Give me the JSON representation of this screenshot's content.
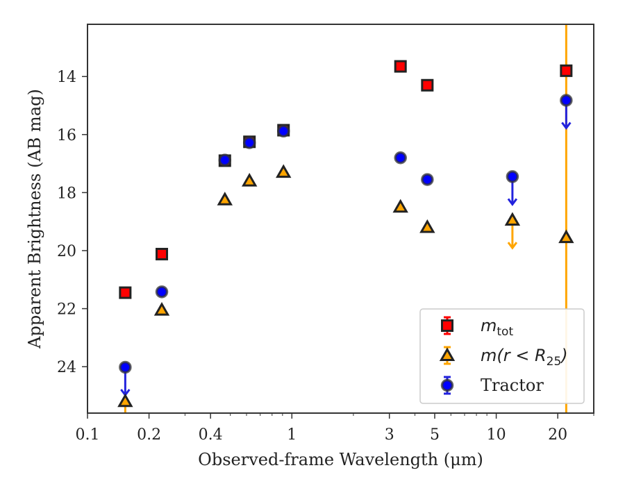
{
  "chart_data": {
    "type": "scatter",
    "xlabel": "Observed-frame Wavelength (μm)",
    "ylabel": "Apparent Brightness (AB mag)",
    "x_scale": "log",
    "xlim": [
      0.1,
      30
    ],
    "ylim": [
      25.6,
      12.2
    ],
    "y_inverted": true,
    "grid": false,
    "legend_position": "bottom-right",
    "x_ticks": [
      0.1,
      0.2,
      0.4,
      1,
      3,
      5,
      10,
      20
    ],
    "x_tick_labels": [
      "0.1",
      "0.2",
      "0.4",
      "1",
      "3",
      "5",
      "10",
      "20"
    ],
    "y_ticks": [
      14,
      16,
      18,
      20,
      22,
      24
    ],
    "y_tick_labels": [
      "14",
      "16",
      "18",
      "20",
      "22",
      "24"
    ],
    "series": [
      {
        "name": "m_tot",
        "marker": "square",
        "fill": "#ff0000",
        "edge": "#222222",
        "points": [
          {
            "x": 0.153,
            "y": 21.45
          },
          {
            "x": 0.231,
            "y": 20.12
          },
          {
            "x": 0.47,
            "y": 16.9
          },
          {
            "x": 0.62,
            "y": 16.25
          },
          {
            "x": 0.91,
            "y": 15.85
          },
          {
            "x": 3.4,
            "y": 13.65
          },
          {
            "x": 4.6,
            "y": 14.3
          },
          {
            "x": 22,
            "y": 13.8
          }
        ]
      },
      {
        "name": "m(r < R_25)",
        "marker": "triangle",
        "fill": "#ffa500",
        "edge": "#222222",
        "points": [
          {
            "x": 0.153,
            "y": 25.2,
            "upper_limit": true
          },
          {
            "x": 0.231,
            "y": 22.05
          },
          {
            "x": 0.47,
            "y": 18.25
          },
          {
            "x": 0.62,
            "y": 17.6
          },
          {
            "x": 0.91,
            "y": 17.3
          },
          {
            "x": 3.4,
            "y": 18.5
          },
          {
            "x": 4.6,
            "y": 19.2
          },
          {
            "x": 12,
            "y": 18.95,
            "upper_limit": true
          },
          {
            "x": 22,
            "y": 19.55,
            "upper_limit": true
          }
        ]
      },
      {
        "name": "Tractor",
        "marker": "circle",
        "fill": "#0000ff",
        "edge": "#333333",
        "points": [
          {
            "x": 0.153,
            "y": 24.02,
            "upper_limit": true
          },
          {
            "x": 0.231,
            "y": 21.42
          },
          {
            "x": 0.47,
            "y": 16.88
          },
          {
            "x": 0.62,
            "y": 16.28
          },
          {
            "x": 0.91,
            "y": 15.88
          },
          {
            "x": 3.4,
            "y": 16.8
          },
          {
            "x": 4.6,
            "y": 17.55
          },
          {
            "x": 12,
            "y": 17.45,
            "upper_limit": true
          },
          {
            "x": 22,
            "y": 14.82,
            "upper_limit": true
          }
        ]
      }
    ],
    "legend": {
      "entries": [
        {
          "label": "m",
          "sub": "tot",
          "marker": "square"
        },
        {
          "label": "m(r < R",
          "sub": "25",
          "suffix": ")",
          "marker": "triangle"
        },
        {
          "label": "Tractor",
          "marker": "circle"
        }
      ]
    }
  }
}
